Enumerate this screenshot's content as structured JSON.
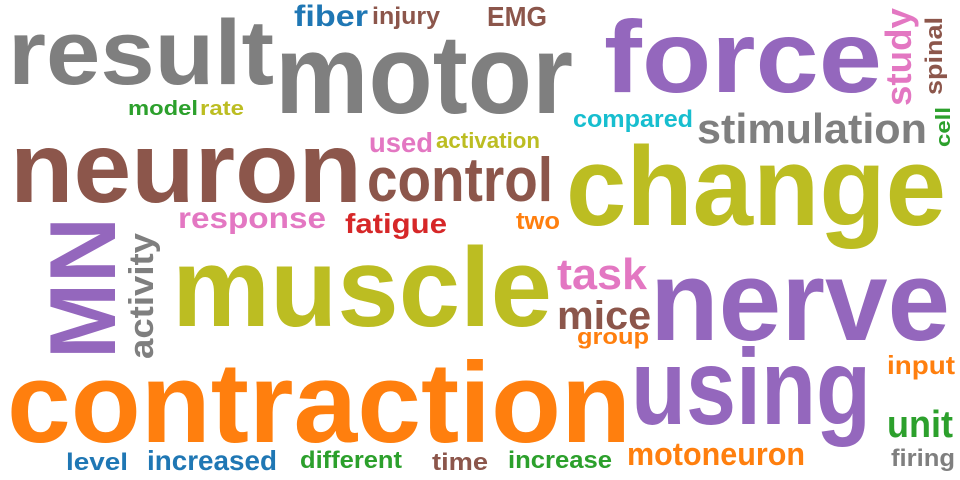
{
  "palette": {
    "gray": "#7f7f7f",
    "brown": "#8c564b",
    "blue": "#1f77b4",
    "purple": "#9467bd",
    "pink": "#e377c2",
    "olive": "#bcbd22",
    "orange": "#ff7f0e",
    "green": "#2ca02c",
    "red": "#d62728",
    "cyan": "#17becf"
  },
  "words": [
    {
      "text": "result",
      "color": "gray"
    },
    {
      "text": "motor",
      "color": "gray"
    },
    {
      "text": "force",
      "color": "purple"
    },
    {
      "text": "fiber",
      "color": "blue"
    },
    {
      "text": "injury",
      "color": "brown"
    },
    {
      "text": "EMG",
      "color": "brown"
    },
    {
      "text": "study",
      "color": "pink"
    },
    {
      "text": "spinal",
      "color": "brown"
    },
    {
      "text": "cell",
      "color": "green"
    },
    {
      "text": "model",
      "color": "green"
    },
    {
      "text": "rate",
      "color": "olive"
    },
    {
      "text": "compared",
      "color": "cyan"
    },
    {
      "text": "stimulation",
      "color": "gray"
    },
    {
      "text": "neuron",
      "color": "brown"
    },
    {
      "text": "used",
      "color": "pink"
    },
    {
      "text": "activation",
      "color": "olive"
    },
    {
      "text": "change",
      "color": "olive"
    },
    {
      "text": "control",
      "color": "brown"
    },
    {
      "text": "response",
      "color": "pink"
    },
    {
      "text": "fatigue",
      "color": "red"
    },
    {
      "text": "two",
      "color": "orange"
    },
    {
      "text": "MN",
      "color": "purple"
    },
    {
      "text": "activity",
      "color": "gray"
    },
    {
      "text": "muscle",
      "color": "olive"
    },
    {
      "text": "task",
      "color": "pink"
    },
    {
      "text": "mice",
      "color": "brown"
    },
    {
      "text": "group",
      "color": "orange"
    },
    {
      "text": "nerve",
      "color": "purple"
    },
    {
      "text": "input",
      "color": "orange"
    },
    {
      "text": "contraction",
      "color": "orange"
    },
    {
      "text": "using",
      "color": "purple"
    },
    {
      "text": "unit",
      "color": "green"
    },
    {
      "text": "firing",
      "color": "gray"
    },
    {
      "text": "level",
      "color": "blue"
    },
    {
      "text": "increased",
      "color": "blue"
    },
    {
      "text": "different",
      "color": "green"
    },
    {
      "text": "time",
      "color": "brown"
    },
    {
      "text": "increase",
      "color": "green"
    },
    {
      "text": "motoneuron",
      "color": "orange"
    }
  ]
}
